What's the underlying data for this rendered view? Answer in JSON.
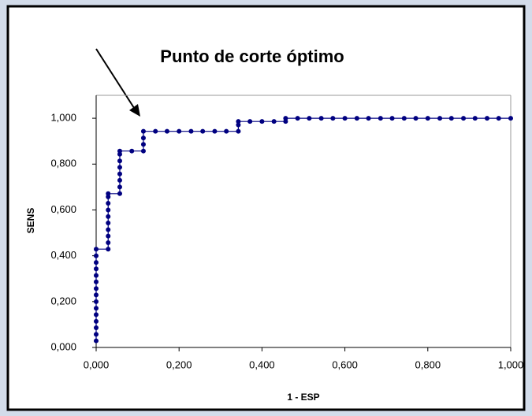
{
  "chart_data": {
    "type": "line",
    "title": "Punto de corte óptimo",
    "x_label": "1 - ESP",
    "y_label": "SENS",
    "x": [
      0,
      0,
      0,
      0,
      0,
      0,
      0,
      0,
      0,
      0,
      0,
      0,
      0,
      0,
      0,
      0.029,
      0.029,
      0.029,
      0.029,
      0.029,
      0.029,
      0.029,
      0.029,
      0.029,
      0.029,
      0.057,
      0.057,
      0.057,
      0.057,
      0.057,
      0.057,
      0.057,
      0.057,
      0.086,
      0.114,
      0.114,
      0.114,
      0.114,
      0.143,
      0.171,
      0.2,
      0.229,
      0.257,
      0.286,
      0.314,
      0.343,
      0.343,
      0.343,
      0.371,
      0.4,
      0.429,
      0.457,
      0.457,
      0.486,
      0.514,
      0.543,
      0.571,
      0.6,
      0.629,
      0.657,
      0.686,
      0.714,
      0.743,
      0.771,
      0.8,
      0.829,
      0.857,
      0.886,
      0.914,
      0.943,
      0.971,
      1.0
    ],
    "series": [
      {
        "color": "#000080",
        "values": [
          0.029,
          0.057,
          0.086,
          0.114,
          0.143,
          0.171,
          0.2,
          0.229,
          0.257,
          0.286,
          0.314,
          0.343,
          0.371,
          0.4,
          0.429,
          0.429,
          0.457,
          0.486,
          0.514,
          0.543,
          0.571,
          0.6,
          0.629,
          0.657,
          0.671,
          0.671,
          0.7,
          0.729,
          0.757,
          0.786,
          0.814,
          0.843,
          0.857,
          0.857,
          0.857,
          0.886,
          0.914,
          0.943,
          0.943,
          0.943,
          0.943,
          0.943,
          0.943,
          0.943,
          0.943,
          0.943,
          0.971,
          0.986,
          0.986,
          0.986,
          0.986,
          0.986,
          1.0,
          1.0,
          1.0,
          1.0,
          1.0,
          1.0,
          1.0,
          1.0,
          1.0,
          1.0,
          1.0,
          1.0,
          1.0,
          1.0,
          1.0,
          1.0,
          1.0,
          1.0,
          1.0,
          1.0
        ]
      }
    ],
    "xlim": [
      0,
      1
    ],
    "ylim": [
      0,
      1.1
    ],
    "xticks": [
      {
        "value": 0,
        "label": "0,000"
      },
      {
        "value": 0.2,
        "label": "0,200"
      },
      {
        "value": 0.4,
        "label": "0,400"
      },
      {
        "value": 0.6,
        "label": "0,600"
      },
      {
        "value": 0.8,
        "label": "0,800"
      },
      {
        "value": 1,
        "label": "1,000"
      }
    ],
    "yticks": [
      {
        "value": 0,
        "label": "0,000"
      },
      {
        "value": 0.2,
        "label": "0,200"
      },
      {
        "value": 0.4,
        "label": "0,400"
      },
      {
        "value": 0.6,
        "label": "0,600"
      },
      {
        "value": 0.8,
        "label": "0,800"
      },
      {
        "value": 1,
        "label": "1,000"
      }
    ],
    "grid": false
  }
}
